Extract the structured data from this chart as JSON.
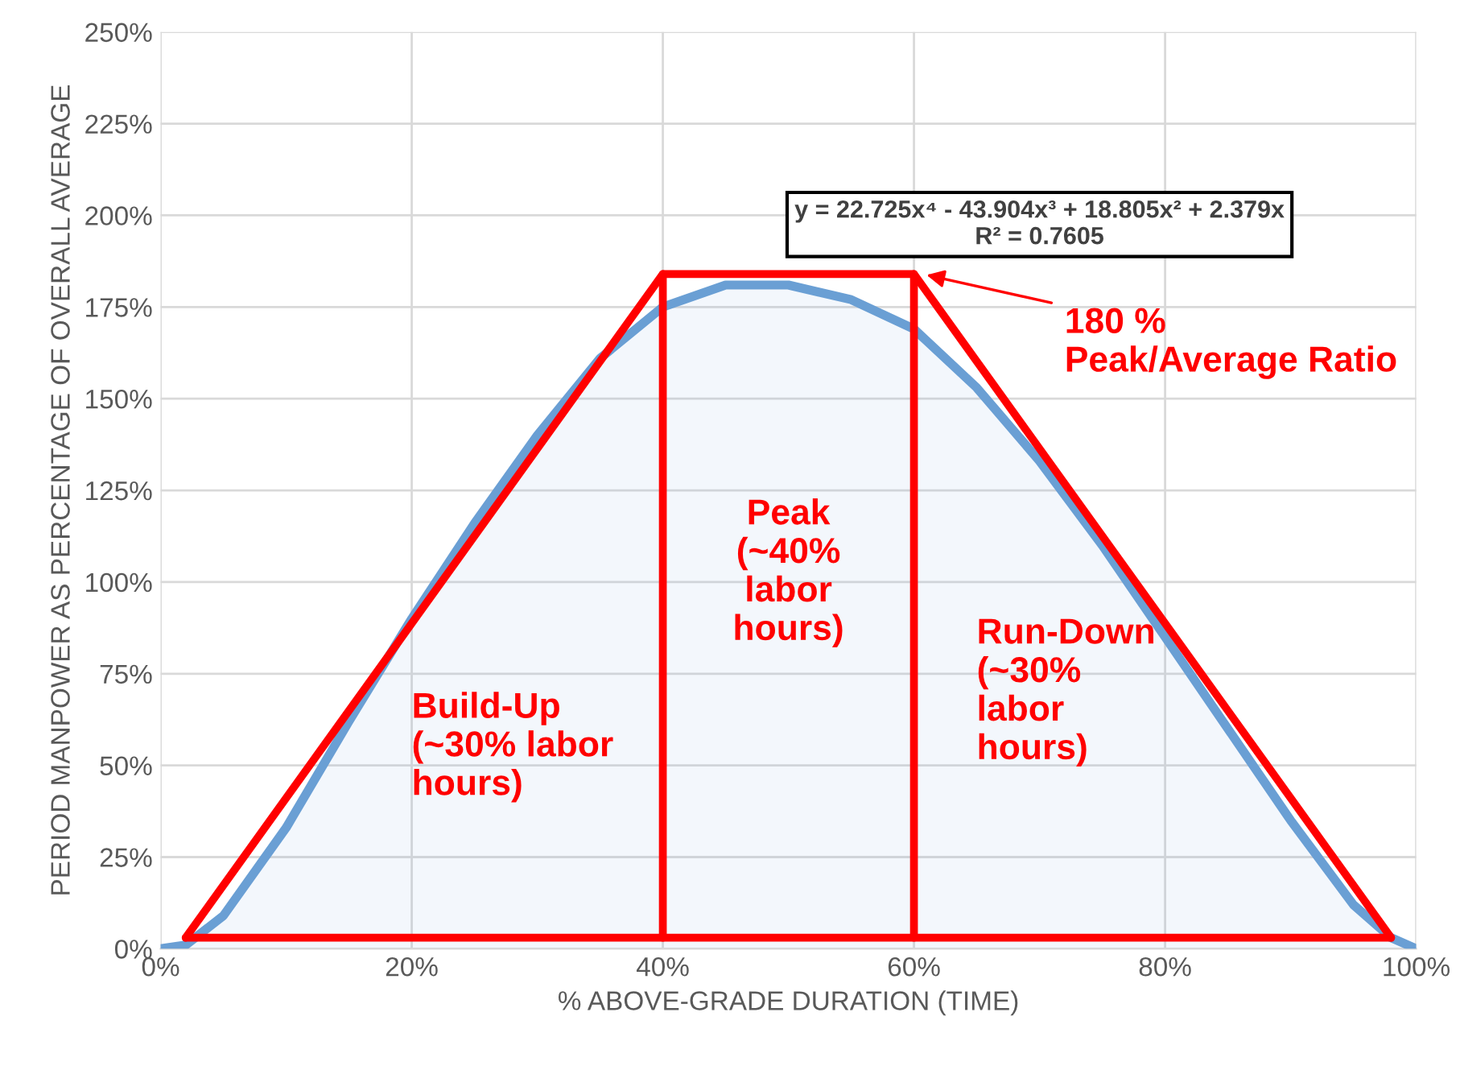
{
  "chart_data": {
    "type": "line",
    "xlabel": "% ABOVE-GRADE DURATION (TIME)",
    "ylabel": "PERIOD MANPOWER AS PERCENTAGE OF OVERALL AVERAGE",
    "series": [
      {
        "type": "area",
        "color": "#6a9fd4",
        "x": [
          0,
          2,
          5,
          10,
          15,
          20,
          25,
          30,
          35,
          40,
          45,
          50,
          55,
          60,
          65,
          70,
          75,
          80,
          85,
          90,
          95,
          98,
          100
        ],
        "values": [
          0,
          1,
          9,
          33,
          62,
          90,
          116,
          140,
          161,
          175,
          181,
          181,
          177,
          169,
          153,
          133,
          110,
          85,
          60,
          35,
          12,
          3,
          0
        ]
      },
      {
        "color": "#ff0000",
        "x": [
          2,
          40,
          60,
          98
        ],
        "values": [
          3,
          184,
          184,
          3
        ]
      },
      {
        "color": "#ff0000",
        "x": [
          2,
          98
        ],
        "values": [
          3,
          3
        ]
      },
      {
        "color": "#ff0000",
        "x": [
          40,
          40
        ],
        "values": [
          3,
          184
        ]
      },
      {
        "color": "#ff0000",
        "x": [
          60,
          60
        ],
        "values": [
          3,
          184
        ]
      }
    ],
    "annotations": [
      "y = 22.725x⁴ - 43.904x³ + 18.805x² + 2.379x\nR² = 0.7605",
      "180 %\nPeak/Average Ratio",
      "Build-Up\n(~30% labor\nhours)",
      "Peak\n(~40%\nlabor\nhours)",
      "Run-Down\n(~30%\nlabor\nhours)"
    ],
    "xlim": [
      0,
      100
    ],
    "ylim": [
      0,
      250
    ],
    "xticks": [
      {
        "value": 0,
        "label": "0%"
      },
      {
        "value": 20,
        "label": "20%"
      },
      {
        "value": 40,
        "label": "40%"
      },
      {
        "value": 60,
        "label": "60%"
      },
      {
        "value": 80,
        "label": "80%"
      },
      {
        "value": 100,
        "label": "100%"
      }
    ],
    "yticks": [
      {
        "value": 0,
        "label": "0%"
      },
      {
        "value": 25,
        "label": "25%"
      },
      {
        "value": 50,
        "label": "50%"
      },
      {
        "value": 75,
        "label": "75%"
      },
      {
        "value": 100,
        "label": "100%"
      },
      {
        "value": 125,
        "label": "125%"
      },
      {
        "value": 150,
        "label": "150%"
      },
      {
        "value": 175,
        "label": "175%"
      },
      {
        "value": 200,
        "label": "200%"
      },
      {
        "value": 225,
        "label": "225%"
      },
      {
        "value": 250,
        "label": "250%"
      }
    ],
    "grid": true,
    "line_style": "solid",
    "marker": "none"
  }
}
